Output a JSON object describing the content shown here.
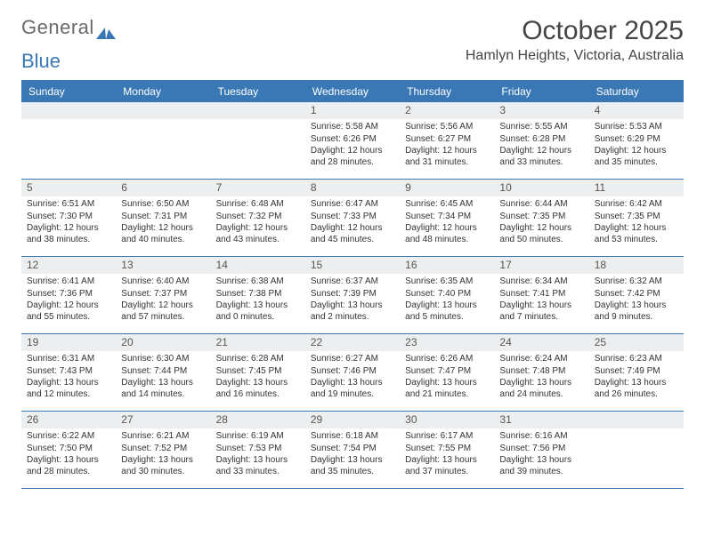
{
  "logo": {
    "text1": "General",
    "text2": "Blue"
  },
  "title": "October 2025",
  "location": "Hamlyn Heights, Victoria, Australia",
  "colors": {
    "accent": "#3a78b5",
    "header_bg": "#3a78b5",
    "header_text": "#ffffff",
    "daynum_bg": "#eceeef",
    "text": "#333333",
    "background": "#ffffff"
  },
  "weekdays": [
    "Sunday",
    "Monday",
    "Tuesday",
    "Wednesday",
    "Thursday",
    "Friday",
    "Saturday"
  ],
  "weeks": [
    [
      {
        "day": "",
        "lines": []
      },
      {
        "day": "",
        "lines": []
      },
      {
        "day": "",
        "lines": []
      },
      {
        "day": "1",
        "lines": [
          "Sunrise: 5:58 AM",
          "Sunset: 6:26 PM",
          "Daylight: 12 hours and 28 minutes."
        ]
      },
      {
        "day": "2",
        "lines": [
          "Sunrise: 5:56 AM",
          "Sunset: 6:27 PM",
          "Daylight: 12 hours and 31 minutes."
        ]
      },
      {
        "day": "3",
        "lines": [
          "Sunrise: 5:55 AM",
          "Sunset: 6:28 PM",
          "Daylight: 12 hours and 33 minutes."
        ]
      },
      {
        "day": "4",
        "lines": [
          "Sunrise: 5:53 AM",
          "Sunset: 6:29 PM",
          "Daylight: 12 hours and 35 minutes."
        ]
      }
    ],
    [
      {
        "day": "5",
        "lines": [
          "Sunrise: 6:51 AM",
          "Sunset: 7:30 PM",
          "Daylight: 12 hours and 38 minutes."
        ]
      },
      {
        "day": "6",
        "lines": [
          "Sunrise: 6:50 AM",
          "Sunset: 7:31 PM",
          "Daylight: 12 hours and 40 minutes."
        ]
      },
      {
        "day": "7",
        "lines": [
          "Sunrise: 6:48 AM",
          "Sunset: 7:32 PM",
          "Daylight: 12 hours and 43 minutes."
        ]
      },
      {
        "day": "8",
        "lines": [
          "Sunrise: 6:47 AM",
          "Sunset: 7:33 PM",
          "Daylight: 12 hours and 45 minutes."
        ]
      },
      {
        "day": "9",
        "lines": [
          "Sunrise: 6:45 AM",
          "Sunset: 7:34 PM",
          "Daylight: 12 hours and 48 minutes."
        ]
      },
      {
        "day": "10",
        "lines": [
          "Sunrise: 6:44 AM",
          "Sunset: 7:35 PM",
          "Daylight: 12 hours and 50 minutes."
        ]
      },
      {
        "day": "11",
        "lines": [
          "Sunrise: 6:42 AM",
          "Sunset: 7:35 PM",
          "Daylight: 12 hours and 53 minutes."
        ]
      }
    ],
    [
      {
        "day": "12",
        "lines": [
          "Sunrise: 6:41 AM",
          "Sunset: 7:36 PM",
          "Daylight: 12 hours and 55 minutes."
        ]
      },
      {
        "day": "13",
        "lines": [
          "Sunrise: 6:40 AM",
          "Sunset: 7:37 PM",
          "Daylight: 12 hours and 57 minutes."
        ]
      },
      {
        "day": "14",
        "lines": [
          "Sunrise: 6:38 AM",
          "Sunset: 7:38 PM",
          "Daylight: 13 hours and 0 minutes."
        ]
      },
      {
        "day": "15",
        "lines": [
          "Sunrise: 6:37 AM",
          "Sunset: 7:39 PM",
          "Daylight: 13 hours and 2 minutes."
        ]
      },
      {
        "day": "16",
        "lines": [
          "Sunrise: 6:35 AM",
          "Sunset: 7:40 PM",
          "Daylight: 13 hours and 5 minutes."
        ]
      },
      {
        "day": "17",
        "lines": [
          "Sunrise: 6:34 AM",
          "Sunset: 7:41 PM",
          "Daylight: 13 hours and 7 minutes."
        ]
      },
      {
        "day": "18",
        "lines": [
          "Sunrise: 6:32 AM",
          "Sunset: 7:42 PM",
          "Daylight: 13 hours and 9 minutes."
        ]
      }
    ],
    [
      {
        "day": "19",
        "lines": [
          "Sunrise: 6:31 AM",
          "Sunset: 7:43 PM",
          "Daylight: 13 hours and 12 minutes."
        ]
      },
      {
        "day": "20",
        "lines": [
          "Sunrise: 6:30 AM",
          "Sunset: 7:44 PM",
          "Daylight: 13 hours and 14 minutes."
        ]
      },
      {
        "day": "21",
        "lines": [
          "Sunrise: 6:28 AM",
          "Sunset: 7:45 PM",
          "Daylight: 13 hours and 16 minutes."
        ]
      },
      {
        "day": "22",
        "lines": [
          "Sunrise: 6:27 AM",
          "Sunset: 7:46 PM",
          "Daylight: 13 hours and 19 minutes."
        ]
      },
      {
        "day": "23",
        "lines": [
          "Sunrise: 6:26 AM",
          "Sunset: 7:47 PM",
          "Daylight: 13 hours and 21 minutes."
        ]
      },
      {
        "day": "24",
        "lines": [
          "Sunrise: 6:24 AM",
          "Sunset: 7:48 PM",
          "Daylight: 13 hours and 24 minutes."
        ]
      },
      {
        "day": "25",
        "lines": [
          "Sunrise: 6:23 AM",
          "Sunset: 7:49 PM",
          "Daylight: 13 hours and 26 minutes."
        ]
      }
    ],
    [
      {
        "day": "26",
        "lines": [
          "Sunrise: 6:22 AM",
          "Sunset: 7:50 PM",
          "Daylight: 13 hours and 28 minutes."
        ]
      },
      {
        "day": "27",
        "lines": [
          "Sunrise: 6:21 AM",
          "Sunset: 7:52 PM",
          "Daylight: 13 hours and 30 minutes."
        ]
      },
      {
        "day": "28",
        "lines": [
          "Sunrise: 6:19 AM",
          "Sunset: 7:53 PM",
          "Daylight: 13 hours and 33 minutes."
        ]
      },
      {
        "day": "29",
        "lines": [
          "Sunrise: 6:18 AM",
          "Sunset: 7:54 PM",
          "Daylight: 13 hours and 35 minutes."
        ]
      },
      {
        "day": "30",
        "lines": [
          "Sunrise: 6:17 AM",
          "Sunset: 7:55 PM",
          "Daylight: 13 hours and 37 minutes."
        ]
      },
      {
        "day": "31",
        "lines": [
          "Sunrise: 6:16 AM",
          "Sunset: 7:56 PM",
          "Daylight: 13 hours and 39 minutes."
        ]
      },
      {
        "day": "",
        "lines": []
      }
    ]
  ]
}
